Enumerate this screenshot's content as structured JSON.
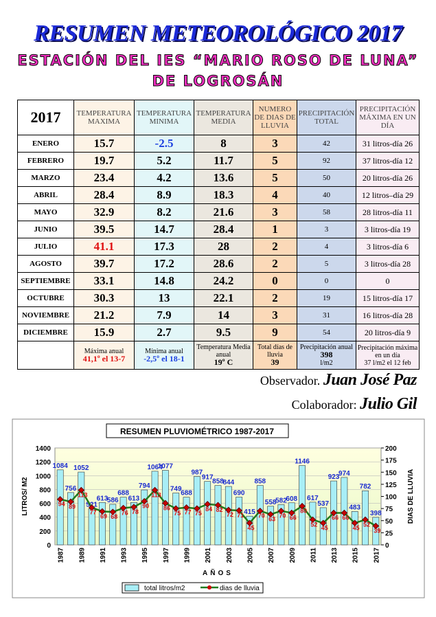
{
  "header": {
    "title": "RESUMEN METEOROLÓGICO 2017",
    "subtitle_1": "ESTACIÓN DEL IES “MARIO ROSO DE LUNA”",
    "subtitle_2": "DE LOGROSÁN"
  },
  "table": {
    "header": [
      "2017",
      "TEMPERATURA MAXIMA",
      "TEMPERATURA MINIMA",
      "TEMPERATURA MEDIA",
      "NUMERO DE DIAS DE LLUVIA",
      "PRECIPITACIÓN TOTAL",
      "PRECIPITACIÓN MÁXIMA EN UN DÍA"
    ],
    "rows": [
      [
        "ENERO",
        "15.7",
        "-2.5",
        "8",
        "3",
        "42",
        "31 litros-día 26"
      ],
      [
        "FEBRERO",
        "19.7",
        "5.2",
        "11.7",
        "5",
        "92",
        "37 litros-día 12"
      ],
      [
        "MARZO",
        "23.4",
        "4.2",
        "13.6",
        "5",
        "50",
        "20 litros-día 26"
      ],
      [
        "ABRIL",
        "28.4",
        "8.9",
        "18.3",
        "4",
        "40",
        "12 litros–día 29"
      ],
      [
        "MAYO",
        "32.9",
        "8.2",
        "21.6",
        "3",
        "58",
        "28 litros-día 11"
      ],
      [
        "JUNIO",
        "39.5",
        "14.7",
        "28.4",
        "1",
        "3",
        "3 litros-día 19"
      ],
      [
        "JULIO",
        "41.1",
        "17.3",
        "28",
        "2",
        "4",
        "3 litros-día 6"
      ],
      [
        "AGOSTO",
        "39.7",
        "17.2",
        "28.6",
        "2",
        "5",
        "3 litros-día 28"
      ],
      [
        "SEPTIEMBRE",
        "33.1",
        "14.8",
        "24.2",
        "0",
        "0",
        "0"
      ],
      [
        "OCTUBRE",
        "30.3",
        "13",
        "22.1",
        "2",
        "19",
        "15 litros-día 17"
      ],
      [
        "NOVIEMBRE",
        "21.2",
        "7.9",
        "14",
        "3",
        "31",
        "16 litros-día 28"
      ],
      [
        "DICIEMBRE",
        "15.9",
        "2.7",
        "9.5",
        "9",
        "54",
        "20 litros-día 9"
      ]
    ],
    "footer": [
      [
        "Máxima anual",
        "41,1º el 13-7"
      ],
      [
        "Mínima anual",
        "-2,5º el 18-1"
      ],
      [
        "Temperatura Media anual",
        "19º C"
      ],
      [
        "Total días de lluvia",
        "39"
      ],
      [
        "Precipitación anual",
        "398",
        "l/m2"
      ],
      [
        "Precipitación máxima en un día",
        "37 l/m2 el 12 feb"
      ]
    ]
  },
  "credits": {
    "observer_label": "Observador.",
    "observer": "Juan José Paz",
    "collaborator_label": "Colaborador:",
    "collaborator": "Julio Gil"
  },
  "chart_data": {
    "type": "bar",
    "title": "RESUMEN PLUVIOMÉTRICO 1987-2017",
    "x_label": "AÑOS",
    "y_label": "LITROS/ M2",
    "y2_label": "DIAS DE LLUVIA",
    "categories": [
      "1987",
      null,
      "1989",
      null,
      "1991",
      null,
      "1993",
      null,
      "1995",
      null,
      "1997",
      null,
      "1999",
      null,
      "2001",
      null,
      "2003",
      null,
      "2005",
      null,
      "2007",
      null,
      "2009",
      null,
      "2011",
      null,
      "2013",
      null,
      "2015",
      null,
      "2017"
    ],
    "series": [
      {
        "name": "total litros/m2",
        "type": "bar",
        "color": "#a8eef6",
        "label_color": "#1a2ad0",
        "values": [
          1084,
          756,
          1052,
          521,
          613,
          586,
          688,
          613,
          794,
          1064,
          1077,
          749,
          688,
          987,
          917,
          858,
          844,
          690,
          415,
          858,
          558,
          582,
          608,
          1146,
          617,
          537,
          923,
          974,
          483,
          782,
          398
        ]
      },
      {
        "name": "dias de lluvia",
        "type": "line",
        "axis": "y2",
        "color": "#1e7a1e",
        "marker_color": "#cc0000",
        "label_color": "#e01010",
        "values": [
          94,
          89,
          113,
          77,
          69,
          68,
          76,
          78,
          90,
          113,
          86,
          75,
          77,
          75,
          84,
          82,
          72,
          71,
          45,
          70,
          63,
          70,
          66,
          80,
          52,
          45,
          66,
          66,
          45,
          52,
          39
        ]
      }
    ],
    "ylim": [
      0,
      1400
    ],
    "yticks": [
      0,
      200,
      400,
      600,
      800,
      1000,
      1200,
      1400
    ],
    "y2lim": [
      0,
      200
    ],
    "y2ticks": [
      0,
      25,
      50,
      75,
      100,
      125,
      150,
      175,
      200
    ],
    "grid": true,
    "legend": "bottom"
  }
}
